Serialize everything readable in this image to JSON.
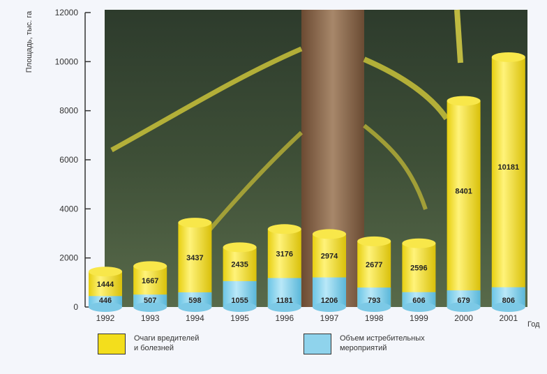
{
  "chart_data": {
    "type": "bar",
    "categories": [
      "1992",
      "1993",
      "1994",
      "1995",
      "1996",
      "1997",
      "1998",
      "1999",
      "2000",
      "2001"
    ],
    "series": [
      {
        "name": "Очаги вредителей\nи болезней",
        "values": [
          1444,
          1667,
          3437,
          2435,
          3176,
          2974,
          2677,
          2596,
          8401,
          10181
        ],
        "color": "#f3de1c"
      },
      {
        "name": "Объем истребительных\nмероприятий",
        "values": [
          446,
          507,
          598,
          1055,
          1181,
          1206,
          793,
          606,
          679,
          806
        ],
        "color": "#8fd3ec"
      }
    ],
    "ylabel": "Площадь, тыс. га",
    "xlabel": "Год",
    "ylim": [
      0,
      12000
    ],
    "yticks": [
      0,
      2000,
      4000,
      6000,
      8000,
      10000,
      12000
    ],
    "legend_position": "bottom"
  }
}
